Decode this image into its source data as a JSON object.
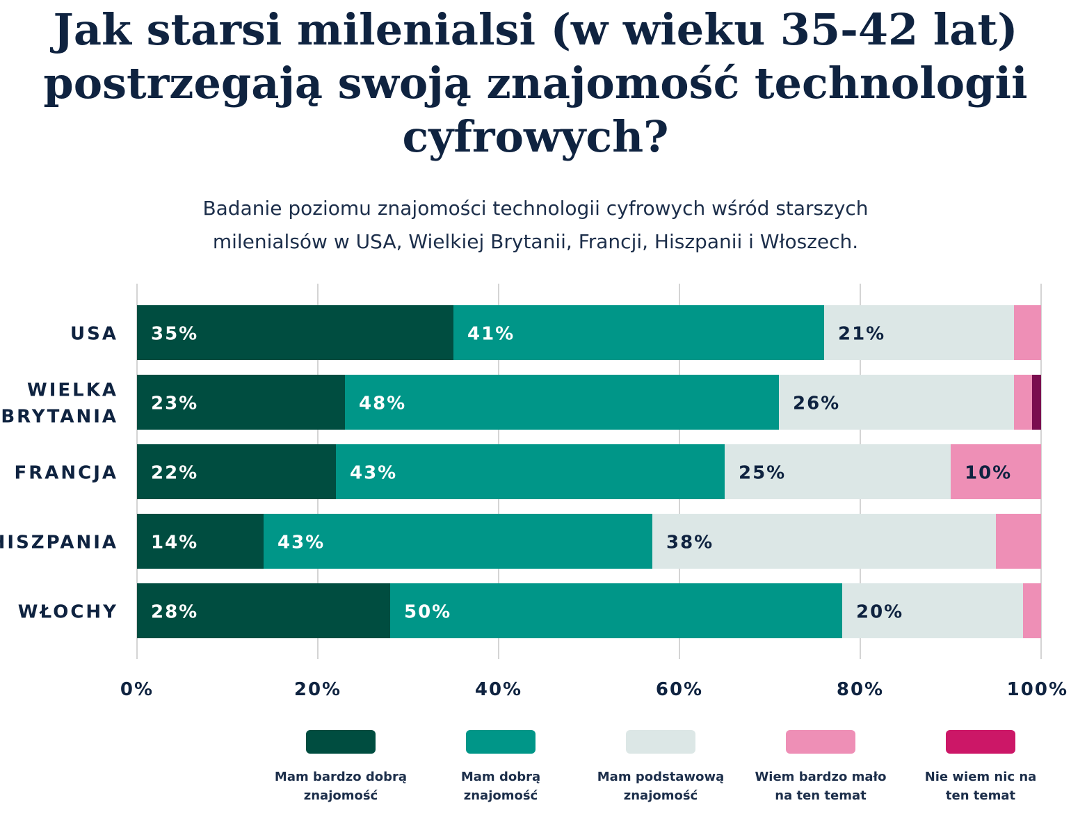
{
  "title": "Jak starsi milenialsi (w wieku 35-42 lat) postrzegają swoją znajomość technologii cyfrowych?",
  "subtitle": "Badanie poziomu znajomości technologii cyfrowych wśród starszych milenialsów w USA, Wielkiej Brytanii, Francji, Hiszpanii i Włoszech.",
  "chart_data": {
    "type": "bar",
    "orientation": "horizontal",
    "stacked": true,
    "categories": [
      "USA",
      "WIELKA BRYTANIA",
      "FRANCJA",
      "HISZPANIA",
      "WŁOCHY"
    ],
    "series": [
      {
        "name": "Mam bardzo dobrą znajomość",
        "color": "#004d40",
        "values": [
          35,
          23,
          22,
          14,
          28
        ],
        "label_color": "#ffffff"
      },
      {
        "name": "Mam dobrą znajomość",
        "color": "#009688",
        "values": [
          41,
          48,
          43,
          43,
          50
        ],
        "label_color": "#ffffff"
      },
      {
        "name": "Mam podstawową znajomość",
        "color": "#dce7e6",
        "values": [
          21,
          26,
          25,
          38,
          20
        ],
        "label_color": "#0f2340"
      },
      {
        "name": "Wiem bardzo mało na ten temat",
        "color": "#ee8fb6",
        "values": [
          3,
          2,
          10,
          5,
          2
        ],
        "label_color": "#0f2340"
      },
      {
        "name": "Nie wiem nic na ten temat",
        "color": "#7a0d4f",
        "legend_color": "#cc1767",
        "values": [
          0,
          1,
          0,
          0,
          0
        ],
        "label_color": "#ffffff"
      }
    ],
    "data_labels_shown": [
      [
        true,
        true,
        true,
        false,
        false
      ],
      [
        true,
        true,
        true,
        false,
        false
      ],
      [
        true,
        true,
        true,
        true,
        false
      ],
      [
        true,
        true,
        true,
        false,
        false
      ],
      [
        true,
        true,
        true,
        false,
        false
      ]
    ],
    "xlim": [
      0,
      100
    ],
    "x_ticks": [
      0,
      20,
      40,
      60,
      80,
      100
    ],
    "x_tick_labels": [
      "0%",
      "20%",
      "40%",
      "60%",
      "80%",
      "100%"
    ],
    "grid": true,
    "legend_position": "bottom"
  },
  "legend": [
    {
      "label": "Mam bardzo dobrą\nznajomość",
      "color": "#004d40"
    },
    {
      "label": "Mam dobrą\nznajomość",
      "color": "#009688"
    },
    {
      "label": "Mam podstawową\nznajomość",
      "color": "#dce7e6"
    },
    {
      "label": "Wiem bardzo mało\nna ten temat",
      "color": "#ee8fb6"
    },
    {
      "label": "Nie wiem nic na\nten temat",
      "color": "#cc1767"
    }
  ]
}
